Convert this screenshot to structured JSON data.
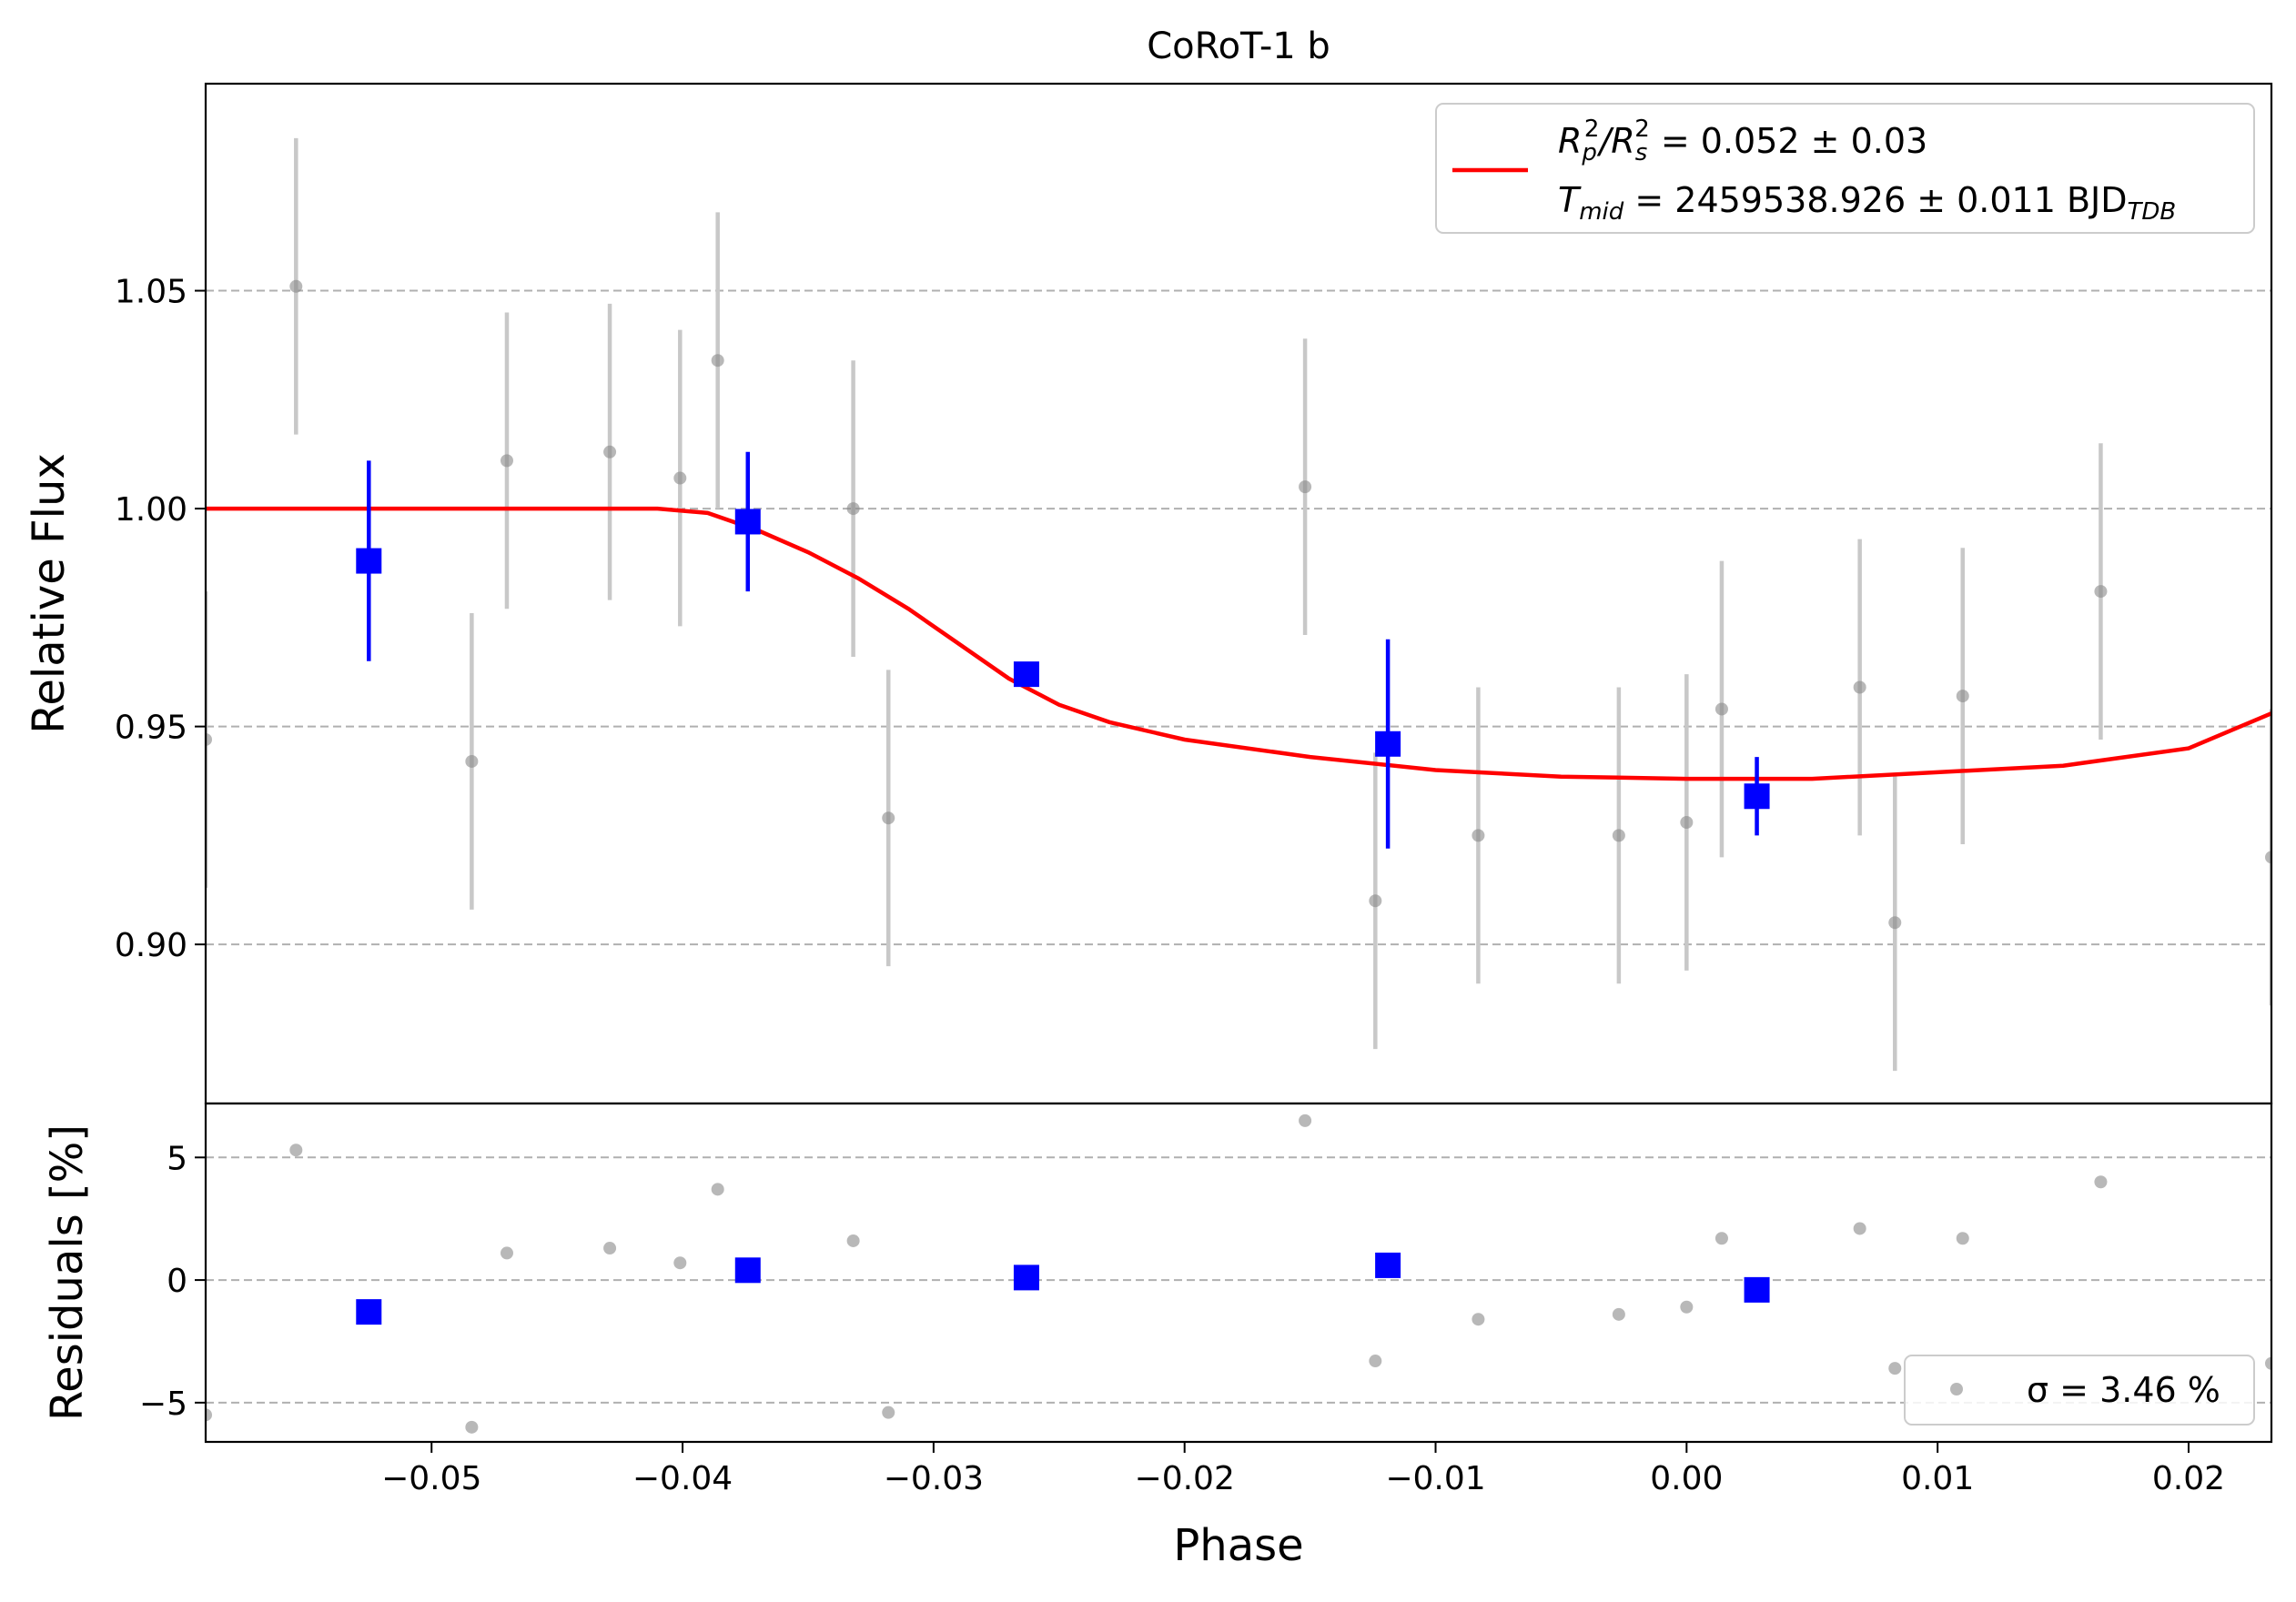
{
  "title": "CoRoT-1 b",
  "colors": {
    "raw_points": "#888888",
    "raw_errorbars": "#c8c8c8",
    "binned": "#0000ff",
    "model": "#ff0000",
    "grid": "#b0b0b0"
  },
  "legend_top": {
    "placement": "upper right",
    "line1": {
      "base": "R",
      "sub1": "p",
      "sup1": "2",
      "slash": "/R",
      "sub2": "s",
      "sup2": "2",
      "rest": " = 0.052 ± 0.03"
    },
    "line2": {
      "base": "T",
      "sub": "mid",
      "rest": " = 2459538.926 ± 0.011 BJD",
      "unit_sub": "TDB"
    }
  },
  "legend_bottom": {
    "placement": "lower right",
    "label": "σ = 3.46 %"
  },
  "chart_data": [
    {
      "type": "scatter",
      "panel": "light curve",
      "title": "CoRoT-1 b",
      "xlabel": "",
      "ylabel": "Relative Flux",
      "xlim": [
        -0.059,
        0.0233
      ],
      "ylim": [
        0.8635,
        1.0975
      ],
      "yticks": [
        0.9,
        0.95,
        1.0,
        1.05
      ],
      "yticklabels": [
        "0.90",
        "0.95",
        "1.00",
        "1.05"
      ],
      "grid": "y dashed",
      "series": [
        {
          "kind": "raw",
          "x": [
            -0.059,
            -0.0554,
            -0.0484,
            -0.047,
            -0.0429,
            -0.0401,
            -0.0386,
            -0.0332,
            -0.0318,
            -0.0152,
            -0.0124,
            -0.0083,
            -0.0027,
            0.0,
            0.0014,
            0.0069,
            0.0083,
            0.011,
            0.0165,
            0.0233
          ],
          "y": [
            0.947,
            1.051,
            0.942,
            1.011,
            1.013,
            1.007,
            1.034,
            1.0,
            0.929,
            1.005,
            0.91,
            0.925,
            0.925,
            0.928,
            0.954,
            0.959,
            0.905,
            0.957,
            0.981,
            0.92
          ],
          "err": [
            0.034,
            0.034,
            0.034,
            0.034,
            0.034,
            0.034,
            0.034,
            0.034,
            0.034,
            0.034,
            0.034,
            0.034,
            0.034,
            0.034,
            0.034,
            0.034,
            0.034,
            0.034,
            0.034,
            0.034
          ]
        },
        {
          "kind": "binned",
          "x": [
            -0.0525,
            -0.0374,
            -0.0263,
            -0.0119,
            0.0028
          ],
          "y": [
            0.988,
            0.997,
            0.962,
            0.946,
            0.934
          ],
          "err": [
            0.023,
            0.016,
            0.0,
            0.024,
            0.009
          ]
        },
        {
          "kind": "model",
          "name": "R_p^2/R_s^2 = 0.052 ± 0.03, T_mid = 2459538.926 ± 0.011 BJD_TDB",
          "x": [
            -0.059,
            -0.05,
            -0.041,
            -0.039,
            -0.037,
            -0.035,
            -0.033,
            -0.031,
            -0.029,
            -0.027,
            -0.025,
            -0.023,
            -0.02,
            -0.015,
            -0.01,
            -0.005,
            0.0,
            0.005,
            0.01,
            0.015,
            0.02,
            0.0233
          ],
          "y": [
            1.0,
            1.0,
            1.0,
            0.999,
            0.995,
            0.99,
            0.984,
            0.977,
            0.969,
            0.961,
            0.955,
            0.951,
            0.947,
            0.943,
            0.94,
            0.9385,
            0.938,
            0.938,
            0.9395,
            0.941,
            0.945,
            0.953
          ]
        }
      ]
    },
    {
      "type": "scatter",
      "panel": "residuals",
      "xlabel": "Phase",
      "ylabel": "Residuals [%]",
      "xlim": [
        -0.059,
        0.0233
      ],
      "ylim": [
        -6.6,
        7.2
      ],
      "xticks": [
        -0.05,
        -0.04,
        -0.03,
        -0.02,
        -0.01,
        0.0,
        0.01,
        0.02
      ],
      "xticklabels": [
        "−0.05",
        "−0.04",
        "−0.03",
        "−0.02",
        "−0.01",
        "0.00",
        "0.01",
        "0.02"
      ],
      "yticks": [
        -5,
        0,
        5
      ],
      "yticklabels": [
        "−5",
        "0",
        "5"
      ],
      "grid": "y dashed",
      "series": [
        {
          "kind": "raw",
          "x": [
            -0.059,
            -0.0554,
            -0.0484,
            -0.047,
            -0.0429,
            -0.0401,
            -0.0386,
            -0.0332,
            -0.0318,
            -0.0152,
            -0.0124,
            -0.0083,
            -0.0027,
            0.0,
            0.0014,
            0.0069,
            0.0083,
            0.011,
            0.0165,
            0.0233
          ],
          "y": [
            -5.5,
            5.3,
            -6.0,
            1.1,
            1.3,
            0.7,
            3.7,
            1.6,
            -5.4,
            6.5,
            -3.3,
            -1.6,
            -1.4,
            -1.1,
            1.7,
            2.1,
            -3.6,
            1.7,
            4.0,
            -3.4
          ]
        },
        {
          "kind": "binned",
          "x": [
            -0.0525,
            -0.0374,
            -0.0263,
            -0.0119,
            0.0028
          ],
          "y": [
            -1.3,
            0.4,
            0.1,
            0.6,
            -0.4
          ]
        }
      ]
    }
  ]
}
